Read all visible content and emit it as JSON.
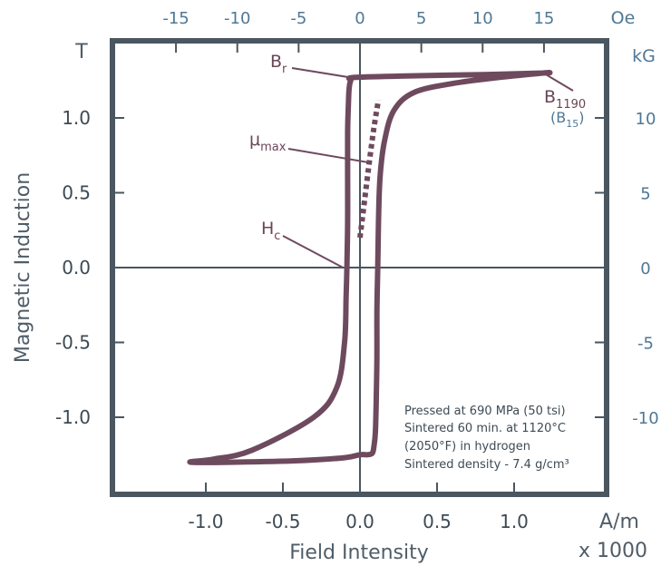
{
  "chart_data": {
    "type": "line",
    "title": "",
    "xlabel": "Field Intensity",
    "xunit": "A/m",
    "xmultiplier": "x 1000",
    "ylabel": "Magnetic Induction",
    "yunit": "T",
    "xlim": [
      -1.5,
      1.6
    ],
    "ylim": [
      -1.5,
      1.5
    ],
    "x_ticks": [
      -1.0,
      -0.5,
      0.0,
      0.5,
      1.0
    ],
    "x_tick_labels": [
      "-1.0",
      "-0.5",
      "0.0",
      "0.5",
      "1.0"
    ],
    "y_ticks": [
      1.0,
      0.5,
      0.0,
      -0.5,
      -1.0
    ],
    "y_tick_labels": [
      "1.0",
      "0.5",
      "0.0",
      "-0.5",
      "-1.0"
    ],
    "top_axis": {
      "unit": "Oe",
      "ticks": [
        -15,
        -10,
        -5,
        0,
        5,
        10,
        15
      ],
      "tick_labels": [
        "-15",
        "-10",
        "-5",
        "0",
        "5",
        "10",
        "15"
      ],
      "scale_per_si": 12.566
    },
    "right_axis": {
      "unit": "kG",
      "ticks": [
        10,
        5,
        0,
        -5,
        -10
      ],
      "tick_labels": [
        "10",
        "5",
        "0",
        "-5",
        "-10"
      ],
      "scale_per_si": 10
    },
    "grid": false,
    "colors": {
      "curve": "#6e4a5e",
      "frame": "#4a5660",
      "cgs_axis": "#4f7895"
    },
    "series": [
      {
        "role": "hysteresis-loop",
        "x": [
          1.19,
          0.9,
          0.6,
          0.35,
          0.22,
          0.16,
          0.13,
          0.12,
          0.115,
          0.11,
          0.11,
          0.105,
          0.1,
          0.09,
          0.08,
          0.05,
          0.0,
          -0.1,
          -0.4,
          -0.8,
          -1.1,
          -0.95,
          -0.7,
          -0.3,
          -0.15,
          -0.1,
          -0.09,
          -0.085,
          -0.08,
          -0.08,
          -0.08,
          -0.075,
          -0.07,
          -0.06,
          -0.04,
          0.3,
          0.8,
          1.19
        ],
        "y": [
          1.3,
          1.27,
          1.23,
          1.17,
          1.05,
          0.85,
          0.6,
          0.3,
          0.0,
          -0.3,
          -0.6,
          -0.9,
          -1.1,
          -1.2,
          -1.24,
          -1.25,
          -1.25,
          -1.27,
          -1.29,
          -1.3,
          -1.3,
          -1.28,
          -1.22,
          -1.0,
          -0.8,
          -0.5,
          -0.2,
          0.0,
          0.3,
          0.6,
          0.9,
          1.1,
          1.2,
          1.25,
          1.27,
          1.28,
          1.29,
          1.3
        ]
      },
      {
        "role": "initial-magnetization",
        "style": "dashed",
        "x": [
          0.0,
          0.03,
          0.06,
          0.09,
          0.12
        ],
        "y": [
          0.2,
          0.45,
          0.7,
          0.93,
          1.12
        ]
      }
    ],
    "annotations": [
      {
        "label": "B",
        "sub": "r",
        "x": -0.06,
        "y": 1.27
      },
      {
        "label": "B",
        "sub": "1190",
        "cgs": "(B",
        "cgs_sub": "15",
        "cgs_close": ")",
        "x": 1.19,
        "y": 1.3
      },
      {
        "label": "μ",
        "sub": "max",
        "x": 0.07,
        "y": 0.7
      },
      {
        "label": "H",
        "sub": "c",
        "x": -0.11,
        "y": 0.0
      }
    ],
    "notes": [
      "Pressed at 690 MPa (50 tsi)",
      "Sintered 60 min. at 1120°C",
      "(2050°F) in hydrogen",
      "Sintered density - 7.4 g/cm³"
    ]
  }
}
